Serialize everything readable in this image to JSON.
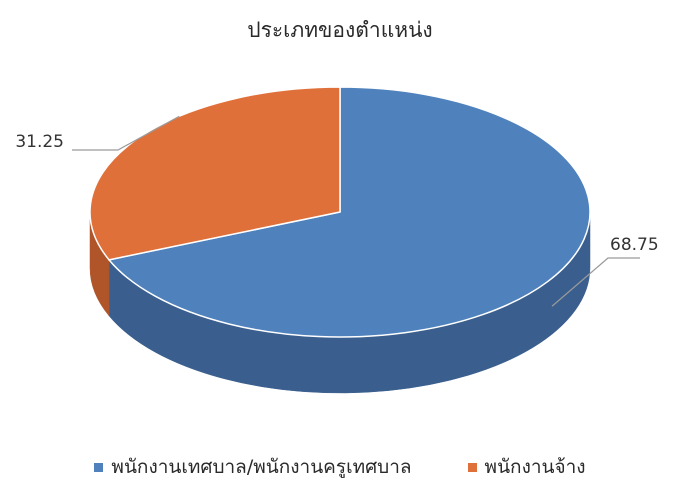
{
  "chart_data": {
    "type": "pie",
    "title": "ประเภทของตำแหน่ง",
    "categories": [
      "พนักงานเทศบาล/พนักงานครูเทศบาล",
      "พนักงานจ้าง"
    ],
    "values": [
      68.75,
      31.25
    ],
    "data_labels": [
      "68.75",
      "31.25"
    ],
    "colors": [
      "#4f81bd",
      "#e0703a"
    ],
    "side_colors": [
      "#3a5f8e",
      "#b0552a"
    ],
    "legend_position": "bottom",
    "style": "3d"
  }
}
